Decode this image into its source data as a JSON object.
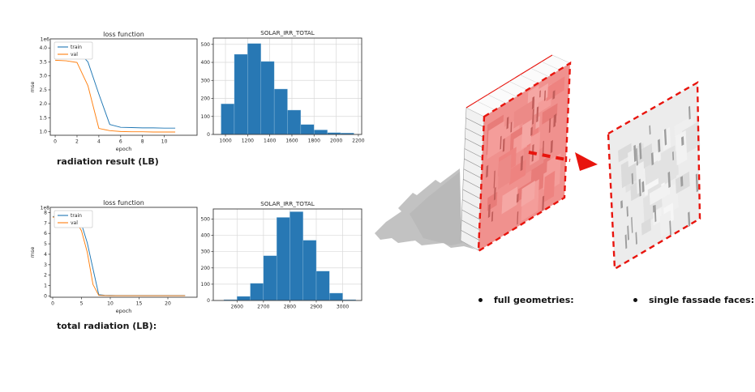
{
  "page": {
    "background": "#ffffff"
  },
  "captions": {
    "radiation_result": "radiation result (LB)",
    "total_radiation": "total radiation (LB):"
  },
  "bullets": [
    {
      "label": "full geometries:"
    },
    {
      "label": "single fassade faces:"
    }
  ],
  "colors": {
    "train_line": "#1f77b4",
    "val_line": "#ff7f0e",
    "hist_bar": "#2878b4",
    "highlight_red": "#e8140d",
    "wall_face_pink": "#f0918e",
    "single_face_gray": "#ececec",
    "shadow_gray": "#c2c2c2"
  },
  "chart_data": [
    {
      "id": "loss-top",
      "type": "line",
      "title": "loss function",
      "xlabel": "epoch",
      "ylabel": "mse",
      "y_offset_label": "1e6",
      "xlim": [
        -0.45,
        13.0
      ],
      "ylim": [
        0.875,
        4.325
      ],
      "xticks": [
        0,
        2,
        4,
        6,
        8,
        10
      ],
      "xtick_labels": [
        "0",
        "2",
        "4",
        "6",
        "8",
        "10"
      ],
      "yticks": [
        1.0,
        1.5,
        2.0,
        2.5,
        3.0,
        3.5,
        4.0
      ],
      "ytick_labels": [
        "1.0",
        "1.5",
        "2.0",
        "2.5",
        "3.0",
        "3.5",
        "4.0"
      ],
      "legend_position": "upper left",
      "grid": false,
      "x": [
        0,
        1,
        2,
        3,
        4,
        5,
        6,
        7,
        8,
        9,
        10,
        11
      ],
      "series": [
        {
          "name": "train",
          "color": "#1f77b4",
          "values": [
            3.95,
            3.94,
            3.92,
            3.5,
            2.35,
            1.26,
            1.16,
            1.15,
            1.14,
            1.14,
            1.13,
            1.13
          ]
        },
        {
          "name": "val",
          "color": "#ff7f0e",
          "values": [
            3.56,
            3.54,
            3.48,
            2.65,
            1.12,
            1.04,
            1.01,
            1.0,
            1.0,
            0.99,
            0.99,
            0.99
          ]
        }
      ]
    },
    {
      "id": "hist-top",
      "type": "bar",
      "title": "SOLAR_IRR_TOTAL",
      "bin_edges": [
        960,
        1080,
        1200,
        1320,
        1440,
        1560,
        1680,
        1800,
        1920,
        2040,
        2160
      ],
      "values": [
        170,
        445,
        505,
        405,
        252,
        135,
        55,
        25,
        10,
        8
      ],
      "xlim": [
        890,
        2230
      ],
      "ylim": [
        0,
        535
      ],
      "xticks": [
        1000,
        1200,
        1400,
        1600,
        1800,
        2000,
        2200
      ],
      "xtick_labels": [
        "1000",
        "1200",
        "1400",
        "1600",
        "1800",
        "2000",
        "2200"
      ],
      "yticks": [
        0,
        100,
        200,
        300,
        400,
        500
      ],
      "ytick_labels": [
        "0",
        "100",
        "200",
        "300",
        "400",
        "500"
      ],
      "grid": true,
      "bar_color": "#2878b4"
    },
    {
      "id": "loss-bottom",
      "type": "line",
      "title": "loss function",
      "xlabel": "epoch",
      "ylabel": "mse",
      "y_offset_label": "1e8",
      "xlim": [
        -0.42,
        25.07
      ],
      "ylim": [
        -0.12,
        8.5
      ],
      "xticks": [
        0,
        5,
        10,
        15,
        20
      ],
      "xtick_labels": [
        "0",
        "5",
        "10",
        "15",
        "20"
      ],
      "yticks": [
        0,
        1,
        2,
        3,
        4,
        5,
        6,
        7,
        8
      ],
      "ytick_labels": [
        "0",
        "1",
        "2",
        "3",
        "4",
        "5",
        "6",
        "7",
        "8"
      ],
      "legend_position": "upper left",
      "grid": false,
      "x": [
        0,
        1,
        2,
        3,
        4,
        5,
        6,
        7,
        8,
        9,
        10,
        11,
        12,
        13,
        14,
        15,
        16,
        17,
        18,
        19,
        20,
        21,
        22,
        23
      ],
      "series": [
        {
          "name": "train",
          "color": "#1f77b4",
          "values": [
            7.62,
            7.62,
            7.62,
            7.62,
            7.55,
            6.9,
            5.1,
            2.6,
            0.12,
            0.07,
            0.06,
            0.05,
            0.05,
            0.05,
            0.05,
            0.05,
            0.05,
            0.05,
            0.05,
            0.05,
            0.05,
            0.05,
            0.05,
            0.05
          ]
        },
        {
          "name": "val",
          "color": "#ff7f0e",
          "values": [
            7.56,
            7.56,
            7.56,
            7.52,
            7.2,
            6.25,
            4.2,
            1.1,
            0.06,
            0.04,
            0.03,
            0.03,
            0.03,
            0.03,
            0.03,
            0.03,
            0.03,
            0.03,
            0.03,
            0.03,
            0.03,
            0.03,
            0.03,
            0.03
          ]
        }
      ]
    },
    {
      "id": "hist-bottom",
      "type": "bar",
      "title": "SOLAR_IRR_TOTAL",
      "bin_edges": [
        2550,
        2600,
        2650,
        2700,
        2750,
        2800,
        2850,
        2900,
        2950,
        3000,
        3050
      ],
      "values": [
        5,
        25,
        105,
        275,
        510,
        545,
        370,
        180,
        45,
        5
      ],
      "xlim": [
        2510,
        3072
      ],
      "ylim": [
        0,
        562
      ],
      "xticks": [
        2600,
        2700,
        2800,
        2900,
        3000
      ],
      "xtick_labels": [
        "2600",
        "2700",
        "2800",
        "2900",
        "3000"
      ],
      "yticks": [
        0,
        100,
        200,
        300,
        400,
        500
      ],
      "ytick_labels": [
        "0",
        "100",
        "200",
        "300",
        "400",
        "500"
      ],
      "grid": true,
      "bar_color": "#2878b4"
    }
  ]
}
